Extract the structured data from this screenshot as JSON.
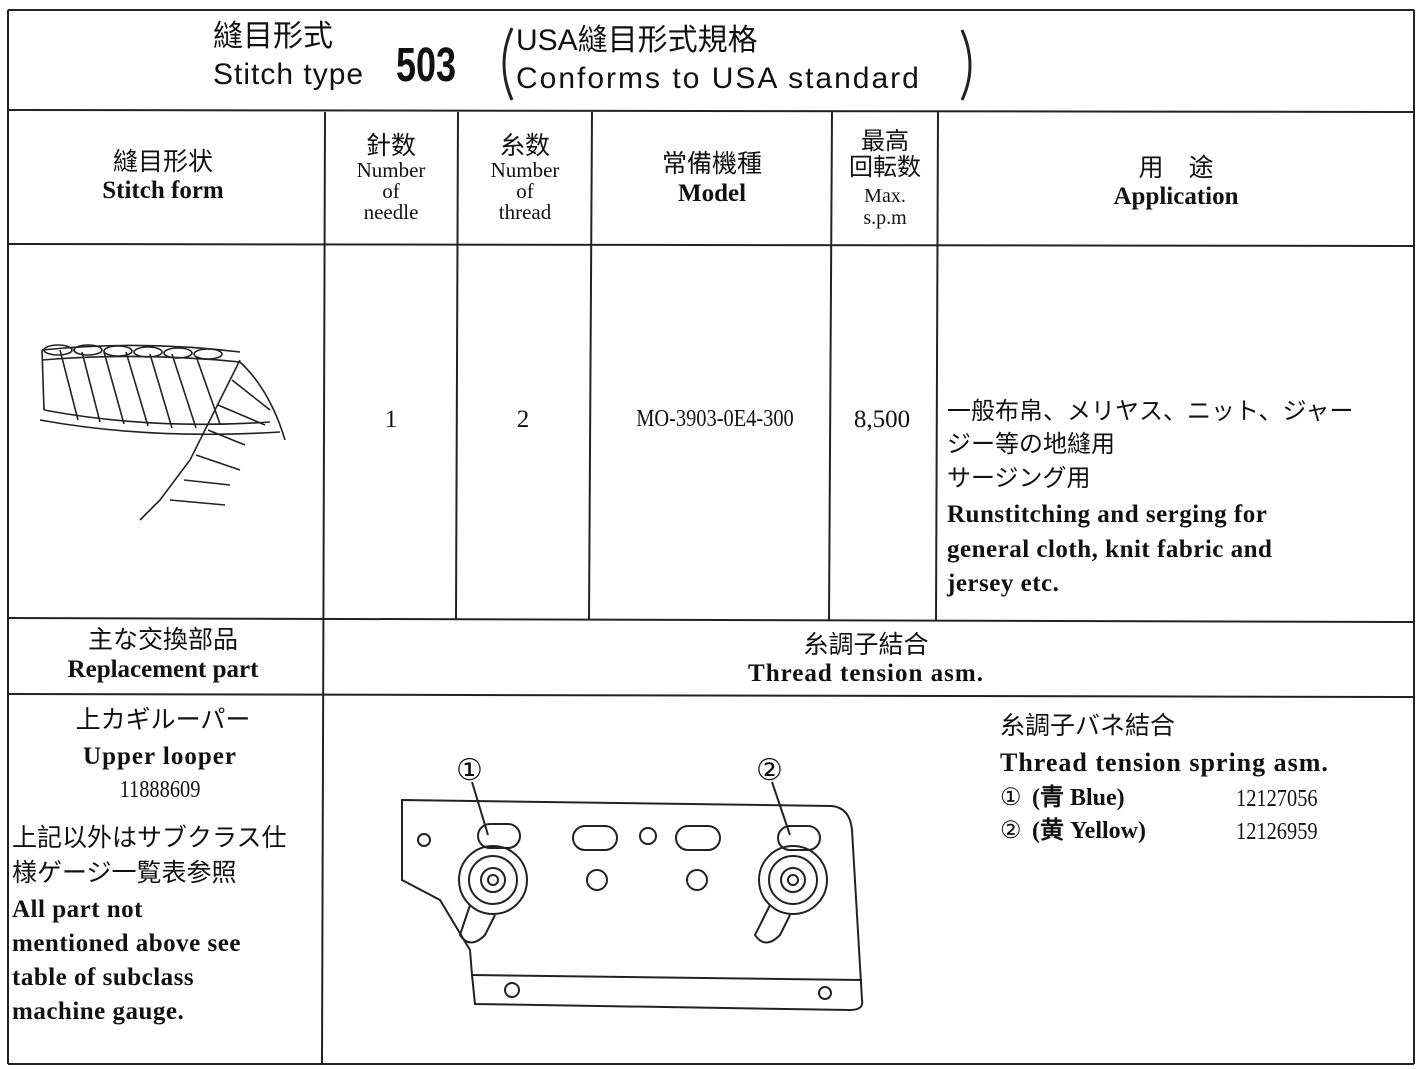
{
  "title": {
    "jp": "縫目形式",
    "en": "Stitch type",
    "number": "503",
    "standard_jp": "USA縫目形式規格",
    "standard_en": "Conforms to USA standard"
  },
  "table": {
    "headers": [
      {
        "jp": [
          "縫目形状"
        ],
        "en": [
          "Stitch form"
        ]
      },
      {
        "jp": [
          "針数"
        ],
        "en": [
          "Number",
          "of",
          "needle"
        ]
      },
      {
        "jp": [
          "糸数"
        ],
        "en": [
          "Number",
          "of",
          "thread"
        ]
      },
      {
        "jp": [
          "常備機種"
        ],
        "en": [
          "Model"
        ]
      },
      {
        "jp": [
          "最高",
          "回転数"
        ],
        "en": [
          "Max.",
          "s.p.m"
        ]
      },
      {
        "jp": [
          "用　途"
        ],
        "en": [
          "Application"
        ]
      }
    ],
    "row": {
      "needles": 1,
      "threads": 2,
      "model": "MO-3903-0E4-300",
      "max_spm": "8,500",
      "application_jp": [
        "一般布帛、メリヤス、ニット、ジャー",
        "ジー等の地縫用",
        "サージング用"
      ],
      "application_en": [
        "Runstitching and serging for",
        "general cloth, knit fabric and",
        "jersey etc."
      ]
    }
  },
  "replacement": {
    "label_jp": "主な交換部品",
    "label_en": "Replacement part",
    "assembly_jp": "糸調子結合",
    "assembly_en": "Thread tension asm.",
    "upper_looper_jp": "上カギルーパー",
    "upper_looper_en": "Upper looper",
    "upper_looper_part": "11888609",
    "note_jp": [
      "上記以外はサブクラス仕",
      "様ゲージ一覧表参照"
    ],
    "note_en": [
      "All part not",
      "mentioned above see",
      "table of subclass",
      "machine gauge."
    ],
    "spring_jp": "糸調子バネ結合",
    "spring_en": "Thread tension spring asm.",
    "springs": [
      {
        "marker": "①",
        "color": "(青 Blue)",
        "part": "12127056"
      },
      {
        "marker": "②",
        "color": "(黄 Yellow)",
        "part": "12126959"
      }
    ],
    "callouts": [
      "①",
      "②"
    ]
  }
}
